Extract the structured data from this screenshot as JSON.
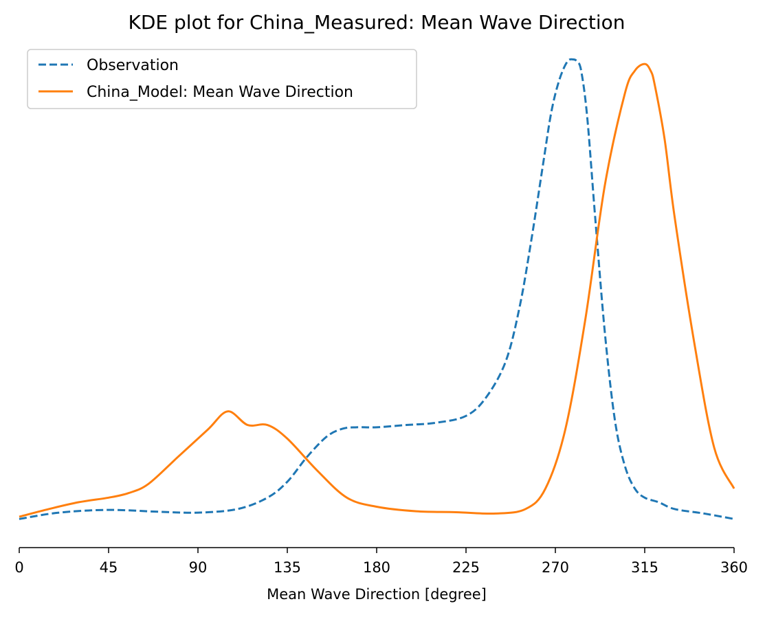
{
  "chart_data": {
    "type": "line",
    "title": "KDE plot for China_Measured: Mean Wave Direction",
    "xlabel": "Mean Wave Direction [degree]",
    "ylabel": "",
    "xlim": [
      0,
      360
    ],
    "ylim": [
      0,
      1.1
    ],
    "x_ticks": [
      0,
      45,
      90,
      135,
      180,
      225,
      270,
      315,
      360
    ],
    "y_axis_visible": false,
    "grid": false,
    "legend_position": "upper-left",
    "series": [
      {
        "name": "Observation",
        "color": "#1f77b4",
        "style": "dashed",
        "x": [
          0,
          20,
          45,
          70,
          90,
          110,
          125,
          135,
          145,
          155,
          163,
          170,
          180,
          195,
          210,
          225,
          235,
          245,
          252,
          258,
          264,
          268,
          272,
          276,
          279,
          281,
          283,
          286,
          290,
          295,
          300,
          305,
          310,
          315,
          322,
          330,
          345,
          360
        ],
        "y": [
          0.063,
          0.077,
          0.083,
          0.079,
          0.077,
          0.085,
          0.11,
          0.145,
          0.2,
          0.245,
          0.262,
          0.265,
          0.265,
          0.27,
          0.275,
          0.29,
          0.33,
          0.41,
          0.53,
          0.68,
          0.85,
          0.96,
          1.03,
          1.07,
          1.075,
          1.07,
          1.05,
          0.95,
          0.73,
          0.47,
          0.28,
          0.18,
          0.13,
          0.11,
          0.1,
          0.085,
          0.075,
          0.063
        ]
      },
      {
        "name": "China_Model: Mean Wave Direction",
        "color": "#ff7f0e",
        "style": "solid",
        "x": [
          0,
          15,
          30,
          45,
          55,
          65,
          80,
          95,
          105,
          115,
          125,
          135,
          150,
          165,
          180,
          200,
          220,
          240,
          255,
          265,
          275,
          285,
          295,
          305,
          310,
          315,
          318,
          320,
          325,
          330,
          340,
          350,
          360
        ],
        "y": [
          0.068,
          0.085,
          0.1,
          0.11,
          0.12,
          0.14,
          0.2,
          0.26,
          0.3,
          0.27,
          0.27,
          0.24,
          0.17,
          0.11,
          0.09,
          0.08,
          0.078,
          0.075,
          0.085,
          0.13,
          0.26,
          0.5,
          0.8,
          1.0,
          1.05,
          1.065,
          1.05,
          1.02,
          0.9,
          0.73,
          0.45,
          0.22,
          0.13
        ]
      }
    ]
  }
}
